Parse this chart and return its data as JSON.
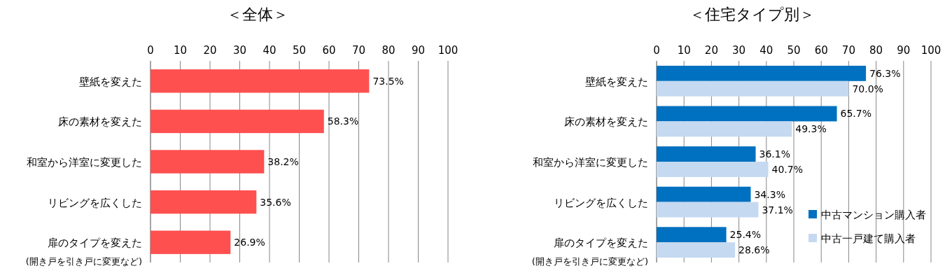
{
  "chart_data": [
    {
      "type": "bar",
      "orientation": "horizontal",
      "title": "＜全体＞",
      "categories": [
        "壁紙を変えた",
        "床の素材を変えた",
        "和室から洋室に変更した",
        "リビングを広くした",
        "扉のタイプを変えた\n(開き戸を引き戸に変更など)"
      ],
      "values": [
        73.5,
        58.3,
        38.2,
        35.6,
        26.9
      ],
      "value_labels": [
        "73.5%",
        "58.3%",
        "38.2%",
        "35.6%",
        "26.9%"
      ],
      "color": "#ff5050",
      "xlim": [
        0,
        100
      ],
      "xticks": [
        0,
        10,
        20,
        30,
        40,
        50,
        60,
        70,
        80,
        90,
        100
      ],
      "grid": "x",
      "legend": false
    },
    {
      "type": "bar",
      "orientation": "horizontal",
      "title": "＜住宅タイプ別＞",
      "categories": [
        "壁紙を変えた",
        "床の素材を変えた",
        "和室から洋室に変更した",
        "リビングを広くした",
        "扉のタイプを変えた\n(開き戸を引き戸に変更など)"
      ],
      "series": [
        {
          "name": "中古マンション購入者",
          "color": "#0070c0",
          "values": [
            76.3,
            65.7,
            36.1,
            34.3,
            25.4
          ],
          "value_labels": [
            "76.3%",
            "65.7%",
            "36.1%",
            "34.3%",
            "25.4%"
          ]
        },
        {
          "name": "中古一戸建て購入者",
          "color": "#c5d9f1",
          "values": [
            70.0,
            49.3,
            40.7,
            37.1,
            28.6
          ],
          "value_labels": [
            "70.0%",
            "49.3%",
            "40.7%",
            "37.1%",
            "28.6%"
          ]
        }
      ],
      "xlim": [
        0,
        100
      ],
      "xticks": [
        0,
        10,
        20,
        30,
        40,
        50,
        60,
        70,
        80,
        90,
        100
      ],
      "grid": "x",
      "legend": "bottom right"
    }
  ]
}
